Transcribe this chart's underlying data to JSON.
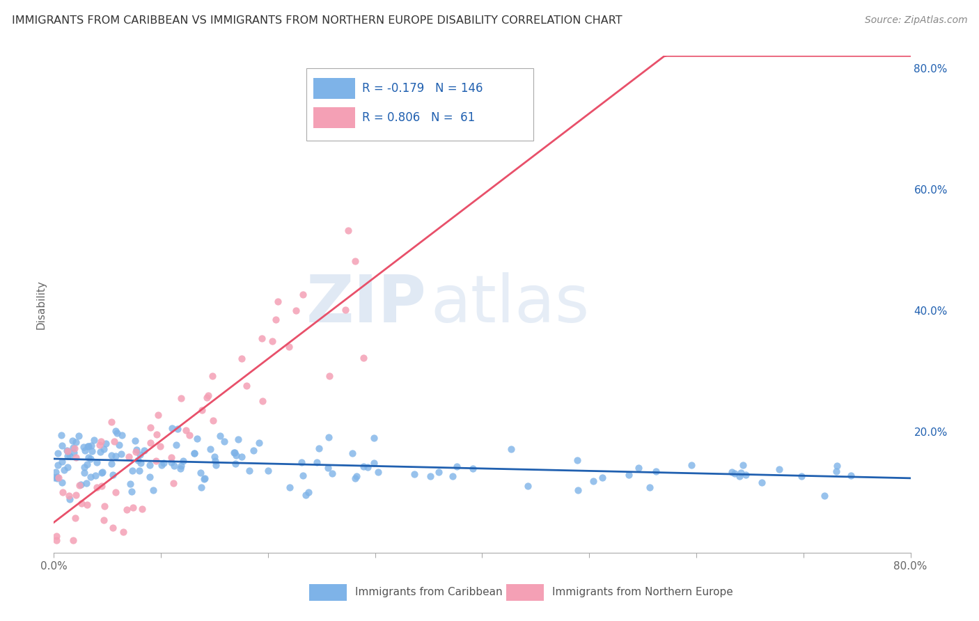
{
  "title": "IMMIGRANTS FROM CARIBBEAN VS IMMIGRANTS FROM NORTHERN EUROPE DISABILITY CORRELATION CHART",
  "source": "Source: ZipAtlas.com",
  "ylabel": "Disability",
  "xlim": [
    0.0,
    0.8
  ],
  "ylim": [
    0.0,
    0.82
  ],
  "x_ticks": [
    0.0,
    0.1,
    0.2,
    0.3,
    0.4,
    0.5,
    0.6,
    0.7,
    0.8
  ],
  "y_ticks_right": [
    0.0,
    0.2,
    0.4,
    0.6,
    0.8
  ],
  "y_tick_labels_right": [
    "",
    "20.0%",
    "40.0%",
    "60.0%",
    "80.0%"
  ],
  "blue_R": -0.179,
  "blue_N": 146,
  "pink_R": 0.806,
  "pink_N": 61,
  "blue_color": "#7EB3E8",
  "pink_color": "#F4A0B5",
  "blue_line_color": "#2060B0",
  "pink_line_color": "#E8506A",
  "legend_R_color": "#2060B0",
  "watermark_zip": "ZIP",
  "watermark_atlas": "atlas",
  "background_color": "#FFFFFF",
  "grid_color": "#CCCCCC",
  "seed": 42
}
